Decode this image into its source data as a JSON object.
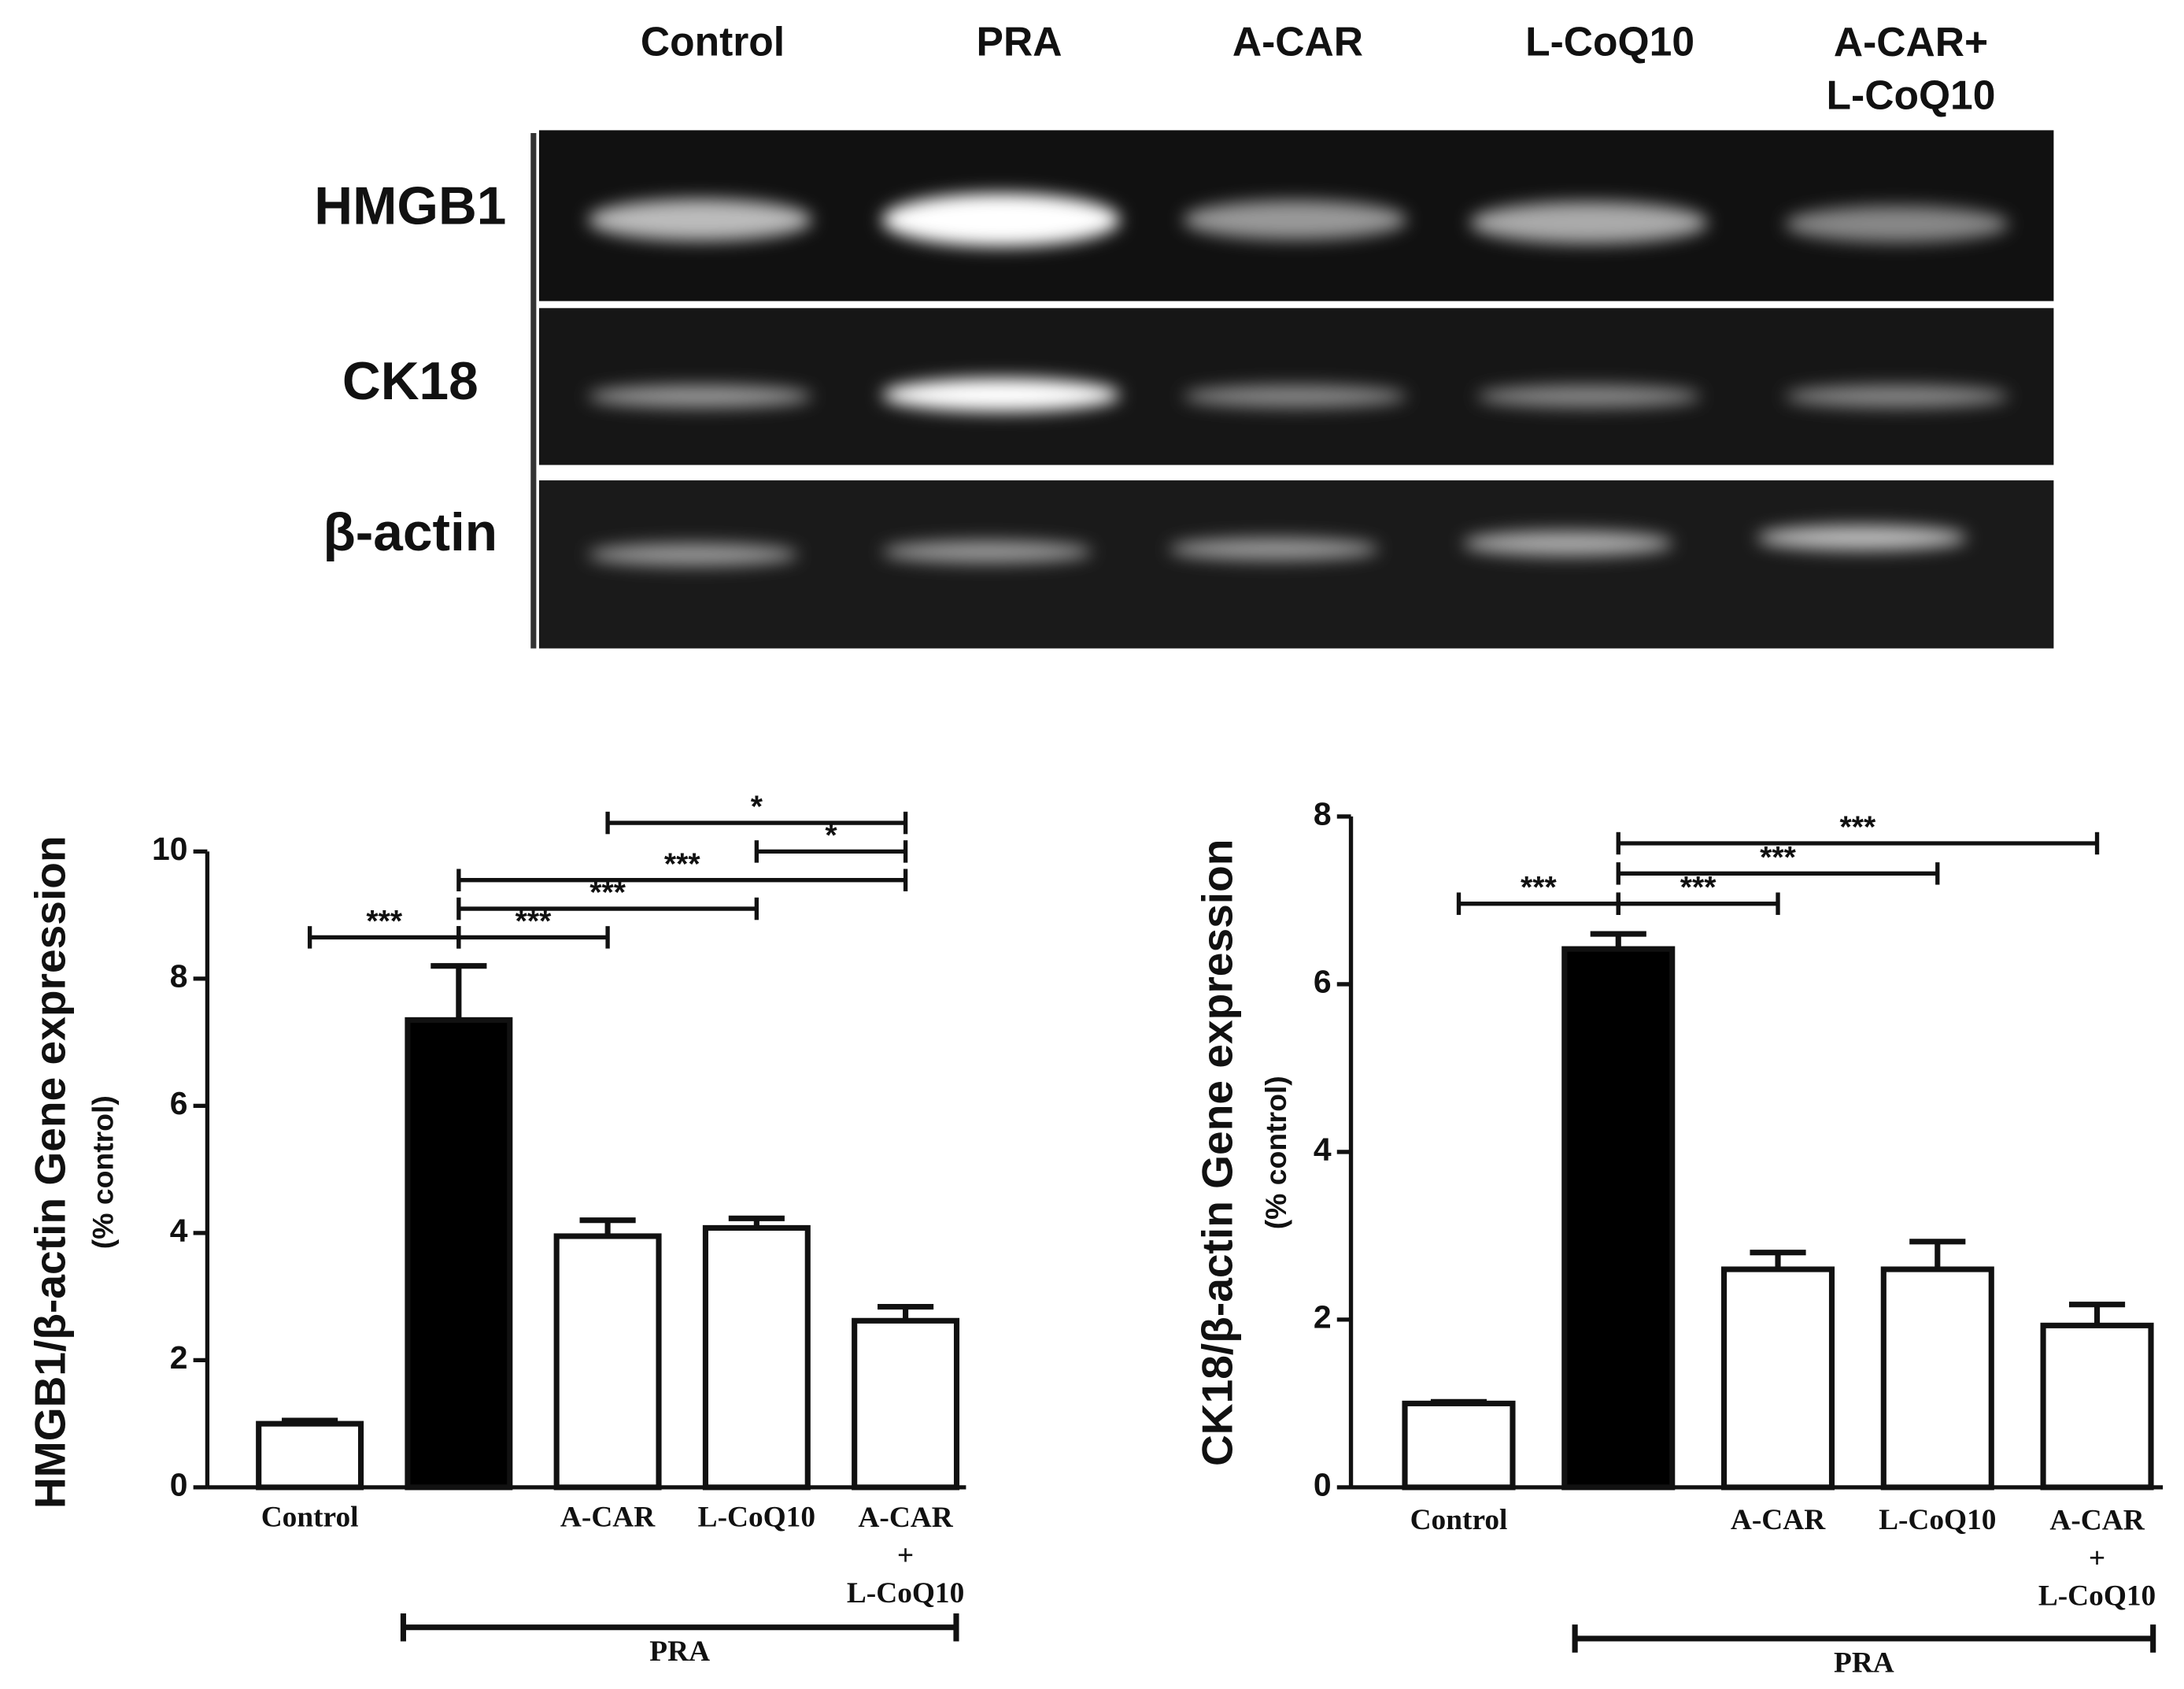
{
  "gel": {
    "lanes": [
      "Control",
      "PRA",
      "A-CAR",
      "L-CoQ10",
      "A-CAR+\nL-CoQ10"
    ],
    "rows": [
      "HMGB1",
      "CK18",
      "β-actin"
    ]
  },
  "chart_data": [
    {
      "type": "bar",
      "ylabel": "HMGB1/β-actin Gene expression",
      "ylabel_sub": "(% control)",
      "categories": [
        "Control",
        null,
        "A-CAR",
        "L-CoQ10",
        "A-CAR\n+\nL-CoQ10"
      ],
      "values": [
        1.0,
        7.35,
        3.95,
        4.08,
        2.62
      ],
      "errors": [
        0.05,
        0.85,
        0.25,
        0.15,
        0.22
      ],
      "colors": [
        "#ffffff",
        "#000000",
        "#ffffff",
        "#ffffff",
        "#ffffff"
      ],
      "ylim": [
        0,
        10
      ],
      "yticks": [
        0,
        2,
        4,
        6,
        8,
        10
      ],
      "significance": [
        {
          "label": "***",
          "from": 0,
          "to": 1
        },
        {
          "label": "***",
          "from": 1,
          "to": 2
        },
        {
          "label": "***",
          "from": 1,
          "to": 3
        },
        {
          "label": "***",
          "from": 1,
          "to": 4
        },
        {
          "label": "*",
          "from": 3,
          "to": 4
        },
        {
          "label": "*",
          "from": 2,
          "to": 4
        }
      ],
      "group": {
        "label": "PRA",
        "from": 1,
        "to": 4
      }
    },
    {
      "type": "bar",
      "ylabel": "CK18/β-actin Gene expression",
      "ylabel_sub": "(% control)",
      "categories": [
        "Control",
        null,
        "A-CAR",
        "L-CoQ10",
        "A-CAR\n+\nL-CoQ10"
      ],
      "values": [
        1.0,
        6.42,
        2.6,
        2.6,
        1.93
      ],
      "errors": [
        0.02,
        0.18,
        0.2,
        0.33,
        0.25
      ],
      "colors": [
        "#ffffff",
        "#000000",
        "#ffffff",
        "#ffffff",
        "#ffffff"
      ],
      "ylim": [
        0,
        8
      ],
      "yticks": [
        0,
        2,
        4,
        6,
        8
      ],
      "significance": [
        {
          "label": "***",
          "from": 0,
          "to": 1
        },
        {
          "label": "***",
          "from": 1,
          "to": 2
        },
        {
          "label": "***",
          "from": 1,
          "to": 3
        },
        {
          "label": "***",
          "from": 1,
          "to": 4
        }
      ],
      "group": {
        "label": "PRA",
        "from": 1,
        "to": 4
      }
    }
  ]
}
